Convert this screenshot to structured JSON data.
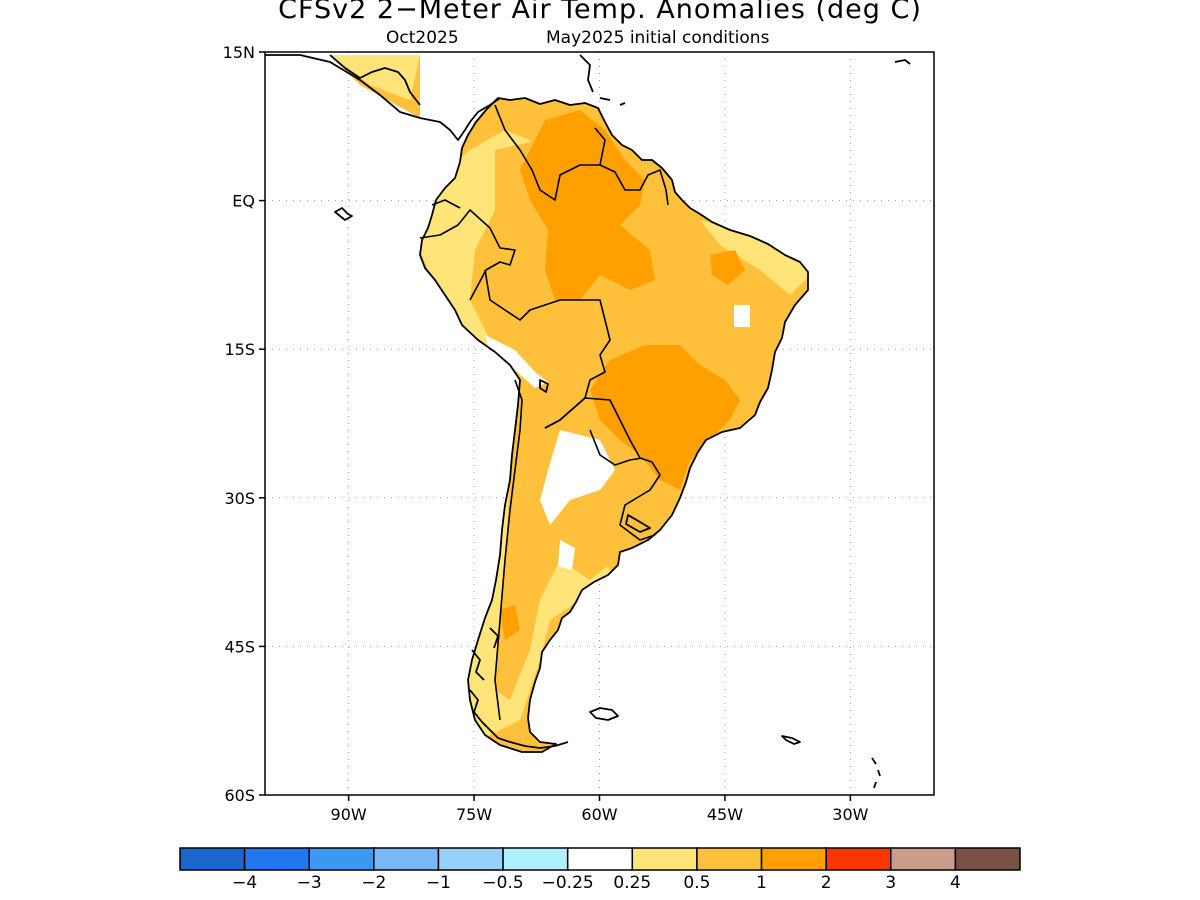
{
  "title": "CFSv2 2−Meter Air Temp. Anomalies (deg C)",
  "subtitle": {
    "valid_month": "Oct2025",
    "initial_conditions": "May2025 initial conditions"
  },
  "map": {
    "lat_labels": [
      "15N",
      "EQ",
      "15S",
      "30S",
      "45S",
      "60S"
    ],
    "lon_labels": [
      "90W",
      "75W",
      "60W",
      "45W",
      "30W"
    ],
    "lat_range": [
      -60,
      15
    ],
    "lon_range": [
      -100,
      -20
    ],
    "region": "South America",
    "grid": "dotted"
  },
  "legend": {
    "colors": [
      "#1a66cc",
      "#2277ee",
      "#3c98f0",
      "#78b8f8",
      "#98d0fa",
      "#b0f0fa",
      "#ffffff",
      "#ffe47a",
      "#ffc03c",
      "#ffa000",
      "#ff3500",
      "#cc9c8c",
      "#785044"
    ],
    "labels": [
      "−4",
      "−3",
      "−2",
      "−1",
      "−0.5",
      "−0.25",
      "0.25",
      "0.5",
      "1",
      "2",
      "3",
      "4"
    ]
  },
  "anomaly_colors": {
    "light": "#ffe47a",
    "moderate": "#ffc03c",
    "strong": "#ffa000"
  }
}
